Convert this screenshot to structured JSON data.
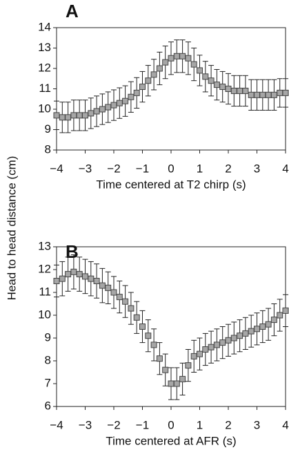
{
  "chart_data": [
    {
      "type": "errorbar",
      "label": "A",
      "xlabel": "Time centered at T2 chirp (s)",
      "ylabel": "Head to head distance (cm)",
      "xlim": [
        -4,
        4
      ],
      "ylim": [
        8,
        14
      ],
      "xticks": [
        {
          "value": -4,
          "label": "−4"
        },
        {
          "value": -3,
          "label": "−3"
        },
        {
          "value": -2,
          "label": "−2"
        },
        {
          "value": -1,
          "label": "−1"
        },
        0,
        1,
        2,
        3,
        4
      ],
      "yticks": [
        8,
        9,
        10,
        11,
        12,
        13,
        14
      ],
      "color": "#a6a6a6",
      "x": [
        -4,
        -3.8,
        -3.6,
        -3.4,
        -3.2,
        -3,
        -2.8,
        -2.6,
        -2.4,
        -2.2,
        -2,
        -1.8,
        -1.6,
        -1.4,
        -1.2,
        -1,
        -0.8,
        -0.6,
        -0.4,
        -0.2,
        0,
        0.2,
        0.4,
        0.6,
        0.8,
        1,
        1.2,
        1.4,
        1.6,
        1.8,
        2,
        2.2,
        2.4,
        2.6,
        2.8,
        3,
        3.2,
        3.4,
        3.6,
        3.8,
        4
      ],
      "values": [
        9.7,
        9.6,
        9.6,
        9.7,
        9.7,
        9.7,
        9.8,
        9.9,
        10.0,
        10.1,
        10.2,
        10.3,
        10.4,
        10.6,
        10.8,
        11.1,
        11.4,
        11.7,
        12.0,
        12.3,
        12.5,
        12.6,
        12.6,
        12.5,
        12.2,
        11.9,
        11.6,
        11.4,
        11.2,
        11.1,
        11.0,
        10.9,
        10.9,
        10.9,
        10.7,
        10.7,
        10.7,
        10.7,
        10.7,
        10.8,
        10.8
      ],
      "errors": [
        0.7,
        0.75,
        0.75,
        0.75,
        0.75,
        0.75,
        0.75,
        0.75,
        0.75,
        0.75,
        0.75,
        0.75,
        0.75,
        0.75,
        0.75,
        0.75,
        0.75,
        0.75,
        0.8,
        0.8,
        0.8,
        0.8,
        0.8,
        0.8,
        0.8,
        0.75,
        0.75,
        0.75,
        0.75,
        0.75,
        0.75,
        0.75,
        0.75,
        0.75,
        0.75,
        0.75,
        0.75,
        0.75,
        0.75,
        0.7,
        0.7
      ]
    },
    {
      "type": "errorbar",
      "label": "B",
      "xlabel": "Time centered at AFR (s)",
      "xlim": [
        -4,
        4
      ],
      "ylim": [
        6,
        13
      ],
      "xticks": [
        {
          "value": -4,
          "label": "−4"
        },
        {
          "value": -3,
          "label": "−3"
        },
        {
          "value": -2,
          "label": "−2"
        },
        {
          "value": -1,
          "label": "−1"
        },
        0,
        1,
        2,
        3,
        4
      ],
      "yticks": [
        6,
        7,
        8,
        9,
        10,
        11,
        12,
        13
      ],
      "color": "#a6a6a6",
      "x": [
        -4,
        -3.8,
        -3.6,
        -3.4,
        -3.2,
        -3,
        -2.8,
        -2.6,
        -2.4,
        -2.2,
        -2,
        -1.8,
        -1.6,
        -1.4,
        -1.2,
        -1,
        -0.8,
        -0.6,
        -0.4,
        -0.2,
        0,
        0.2,
        0.4,
        0.6,
        0.8,
        1,
        1.2,
        1.4,
        1.6,
        1.8,
        2,
        2.2,
        2.4,
        2.6,
        2.8,
        3,
        3.2,
        3.4,
        3.6,
        3.8,
        4
      ],
      "values": [
        11.5,
        11.6,
        11.8,
        11.9,
        11.8,
        11.7,
        11.6,
        11.5,
        11.3,
        11.2,
        11.0,
        10.8,
        10.6,
        10.3,
        9.9,
        9.5,
        9.1,
        8.7,
        8.1,
        7.6,
        7.0,
        7.0,
        7.2,
        7.8,
        8.2,
        8.3,
        8.5,
        8.6,
        8.7,
        8.8,
        8.9,
        9.0,
        9.1,
        9.2,
        9.3,
        9.4,
        9.5,
        9.6,
        9.8,
        10.0,
        10.2
      ],
      "errors": [
        0.7,
        0.75,
        0.75,
        0.75,
        0.75,
        0.75,
        0.75,
        0.75,
        0.75,
        0.7,
        0.7,
        0.7,
        0.7,
        0.7,
        0.7,
        0.7,
        0.7,
        0.7,
        0.7,
        0.7,
        0.7,
        0.7,
        0.7,
        0.7,
        0.7,
        0.7,
        0.7,
        0.7,
        0.7,
        0.7,
        0.7,
        0.7,
        0.7,
        0.7,
        0.7,
        0.7,
        0.7,
        0.7,
        0.7,
        0.7,
        0.7
      ]
    }
  ]
}
